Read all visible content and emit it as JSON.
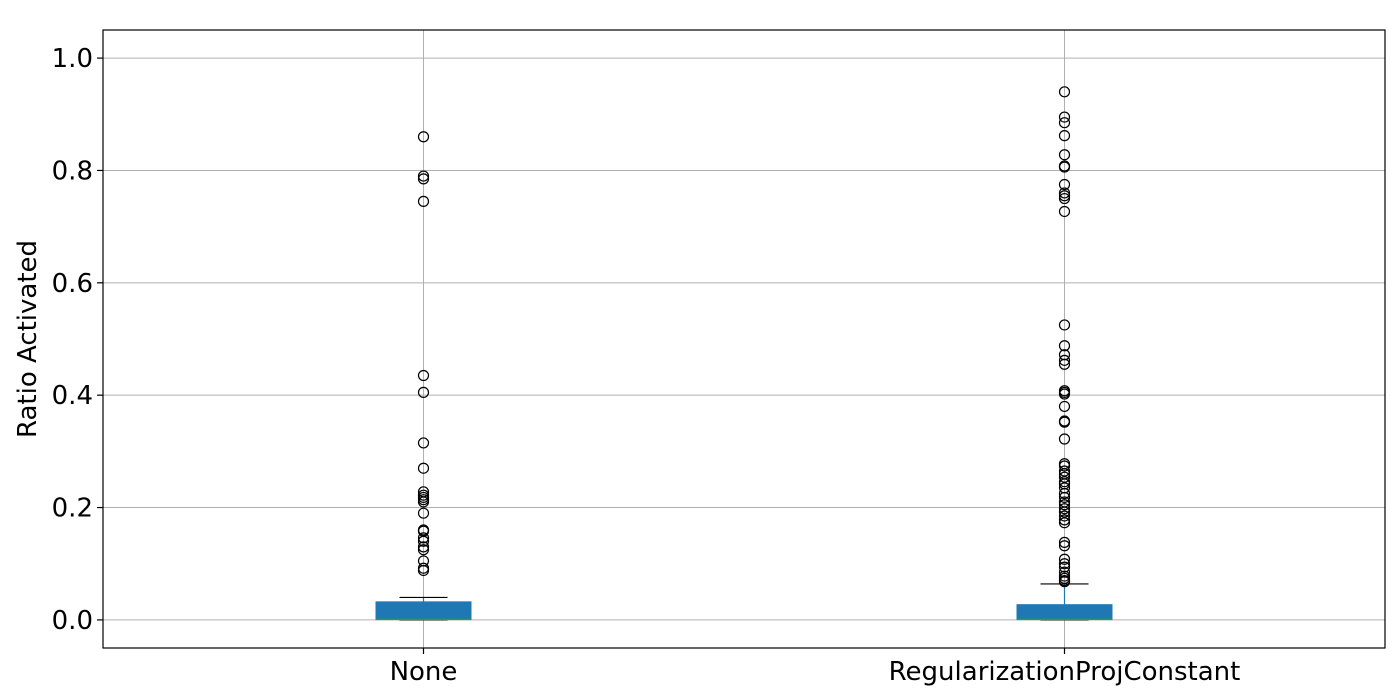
{
  "chart_data": {
    "type": "box",
    "ylabel": "Ratio Activated",
    "ylim": [
      -0.05,
      1.05
    ],
    "yticks": [
      {
        "value": 0.0,
        "label": "0.0"
      },
      {
        "value": 0.2,
        "label": "0.2"
      },
      {
        "value": 0.4,
        "label": "0.4"
      },
      {
        "value": 0.6,
        "label": "0.6"
      },
      {
        "value": 0.8,
        "label": "0.8"
      },
      {
        "value": 1.0,
        "label": "1.0"
      }
    ],
    "grid": true,
    "box_color": "#1f77b4",
    "median_color": "#2ca02c",
    "series": [
      {
        "name": "None",
        "q1": 0.0,
        "median": 0.001,
        "q3": 0.033,
        "whisker_low": 0.0,
        "whisker_high": 0.04,
        "fliers": [
          0.86,
          0.79,
          0.785,
          0.745,
          0.435,
          0.405,
          0.315,
          0.27,
          0.228,
          0.222,
          0.218,
          0.214,
          0.21,
          0.19,
          0.16,
          0.158,
          0.146,
          0.14,
          0.13,
          0.125,
          0.105,
          0.092,
          0.088
        ]
      },
      {
        "name": "RegularizationProjConstant",
        "q1": 0.0,
        "median": 0.001,
        "q3": 0.028,
        "whisker_low": 0.0,
        "whisker_high": 0.064,
        "fliers": [
          0.94,
          0.895,
          0.885,
          0.862,
          0.828,
          0.808,
          0.806,
          0.775,
          0.76,
          0.755,
          0.75,
          0.727,
          0.525,
          0.488,
          0.472,
          0.462,
          0.455,
          0.408,
          0.405,
          0.402,
          0.38,
          0.354,
          0.352,
          0.322,
          0.278,
          0.274,
          0.265,
          0.26,
          0.254,
          0.246,
          0.242,
          0.235,
          0.225,
          0.218,
          0.21,
          0.205,
          0.198,
          0.192,
          0.185,
          0.178,
          0.173,
          0.138,
          0.132,
          0.108,
          0.1,
          0.094,
          0.085,
          0.078,
          0.074,
          0.07,
          0.068
        ]
      }
    ]
  }
}
